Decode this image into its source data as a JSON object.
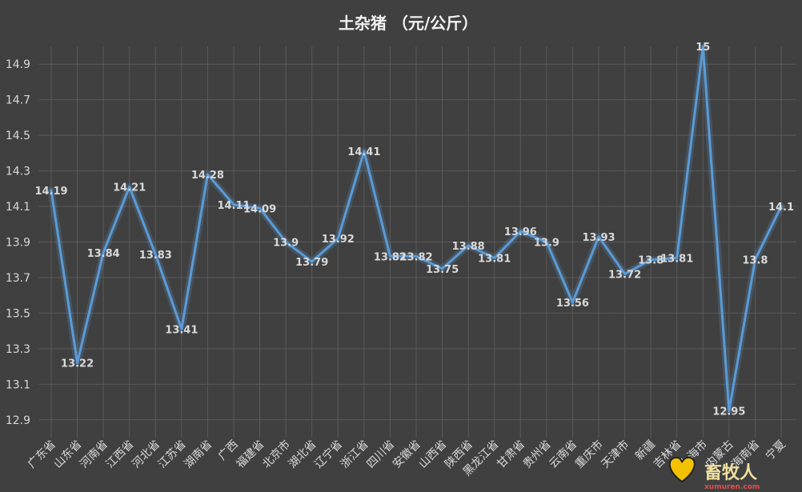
{
  "chart_data": {
    "type": "line",
    "title": "土杂猪  （元/公斤）",
    "xlabel": "",
    "ylabel": "",
    "ylim": [
      12.8,
      15
    ],
    "yticks": [
      12.9,
      13.1,
      13.3,
      13.5,
      13.7,
      13.9,
      14.1,
      14.3,
      14.5,
      14.7,
      14.9
    ],
    "grid": true,
    "categories": [
      "广东省",
      "山东省",
      "河南省",
      "江西省",
      "河北省",
      "江苏省",
      "湖南省",
      "广西",
      "福建省",
      "北京市",
      "湖北省",
      "辽宁省",
      "浙江省",
      "四川省",
      "安徽省",
      "山西省",
      "陕西省",
      "黑龙江省",
      "甘肃省",
      "贵州省",
      "云南省",
      "重庆市",
      "天津市",
      "新疆",
      "吉林省",
      "上海市",
      "内蒙古",
      "海南省",
      "宁夏"
    ],
    "series": [
      {
        "values": [
          14.19,
          13.22,
          13.84,
          14.21,
          13.83,
          13.41,
          14.28,
          14.11,
          14.09,
          13.9,
          13.79,
          13.92,
          14.41,
          13.82,
          13.82,
          13.75,
          13.88,
          13.81,
          13.96,
          13.9,
          13.56,
          13.93,
          13.72,
          13.8,
          13.81,
          15,
          12.95,
          13.8,
          14.1
        ],
        "labels": [
          "14.19",
          "13.22",
          "13.84",
          "14.21",
          "13.83",
          "13.41",
          "14.28",
          "14.11",
          "14.09",
          "13.9",
          "13.79",
          "13.92",
          "14.41",
          "13.82",
          "13.82",
          "13.75",
          "13.88",
          "13.81",
          "13.96",
          "13.9",
          "13.56",
          "13.93",
          "13.72",
          "13.8",
          "13.81",
          "15",
          "12.95",
          "13.8",
          "14.1"
        ],
        "color": "#5b9bd5"
      }
    ]
  },
  "watermark": {
    "text": "畜牧人",
    "site": "xumuren.com",
    "icon": "heart-icon"
  }
}
